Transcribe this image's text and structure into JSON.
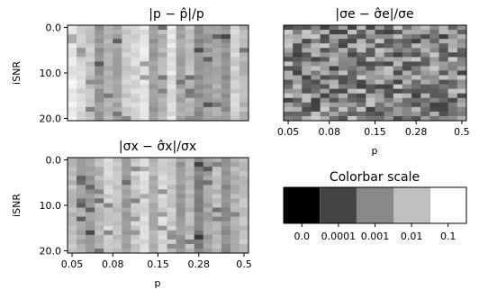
{
  "colors": {
    "background": "#ffffff",
    "axes": "#000000",
    "scale": [
      "#000000",
      "#444444",
      "#888888",
      "#c0c0c0",
      "#ffffff"
    ]
  },
  "chart_data": [
    {
      "type": "heatmap",
      "title": "|p − p̂|/p",
      "ylabel": "iSNR",
      "xlabel": "",
      "x_ticks": [],
      "y_ticks": [
        "0.0",
        "10.0",
        "20.0"
      ],
      "ylim": [
        21,
        0
      ],
      "rows": 21,
      "cols": 20,
      "colormap": "grayscale, log scale 0.0 (black) to 0.1 (white)",
      "column_levels": [
        0.92,
        0.85,
        0.78,
        0.6,
        0.7,
        0.66,
        0.8,
        0.84,
        0.9,
        0.62,
        0.7,
        0.88,
        0.66,
        0.74,
        0.56,
        0.62,
        0.68,
        0.58,
        0.82,
        0.72
      ]
    },
    {
      "type": "heatmap",
      "title": "|σe − σ̂e|/σe",
      "xlabel": "p",
      "ylabel": "",
      "x_ticks": [
        "0.05",
        "0.08",
        "0.15",
        "0.28",
        "0.5"
      ],
      "y_ticks": [],
      "rows": 21,
      "cols": 20,
      "colormap": "grayscale, log scale 0.0 (black) to 0.1 (white)",
      "column_levels": [
        0.55,
        0.5,
        0.52,
        0.56,
        0.48,
        0.5,
        0.52,
        0.46,
        0.55,
        0.5,
        0.52,
        0.54,
        0.48,
        0.5,
        0.53,
        0.47,
        0.5,
        0.52,
        0.49,
        0.51
      ]
    },
    {
      "type": "heatmap",
      "title": "|σx − σ̂x|/σx",
      "xlabel": "p",
      "ylabel": "iSNR",
      "x_ticks": [
        "0.05",
        "0.08",
        "0.15",
        "0.28",
        "0.5"
      ],
      "y_ticks": [
        "0.0",
        "10.0",
        "20.0"
      ],
      "ylim": [
        21,
        0
      ],
      "rows": 21,
      "cols": 20,
      "colormap": "grayscale, log scale 0.0 (black) to 0.1 (white)",
      "column_levels": [
        0.74,
        0.66,
        0.6,
        0.72,
        0.82,
        0.76,
        0.62,
        0.8,
        0.86,
        0.7,
        0.84,
        0.78,
        0.6,
        0.72,
        0.5,
        0.64,
        0.74,
        0.56,
        0.7,
        0.76
      ]
    },
    {
      "type": "bar",
      "title": "Colorbar scale",
      "categories": [
        "0.0",
        "0.0001",
        "0.001",
        "0.01",
        "0.1"
      ],
      "values": [
        0.0,
        0.0001,
        0.001,
        0.01,
        0.1
      ]
    }
  ]
}
